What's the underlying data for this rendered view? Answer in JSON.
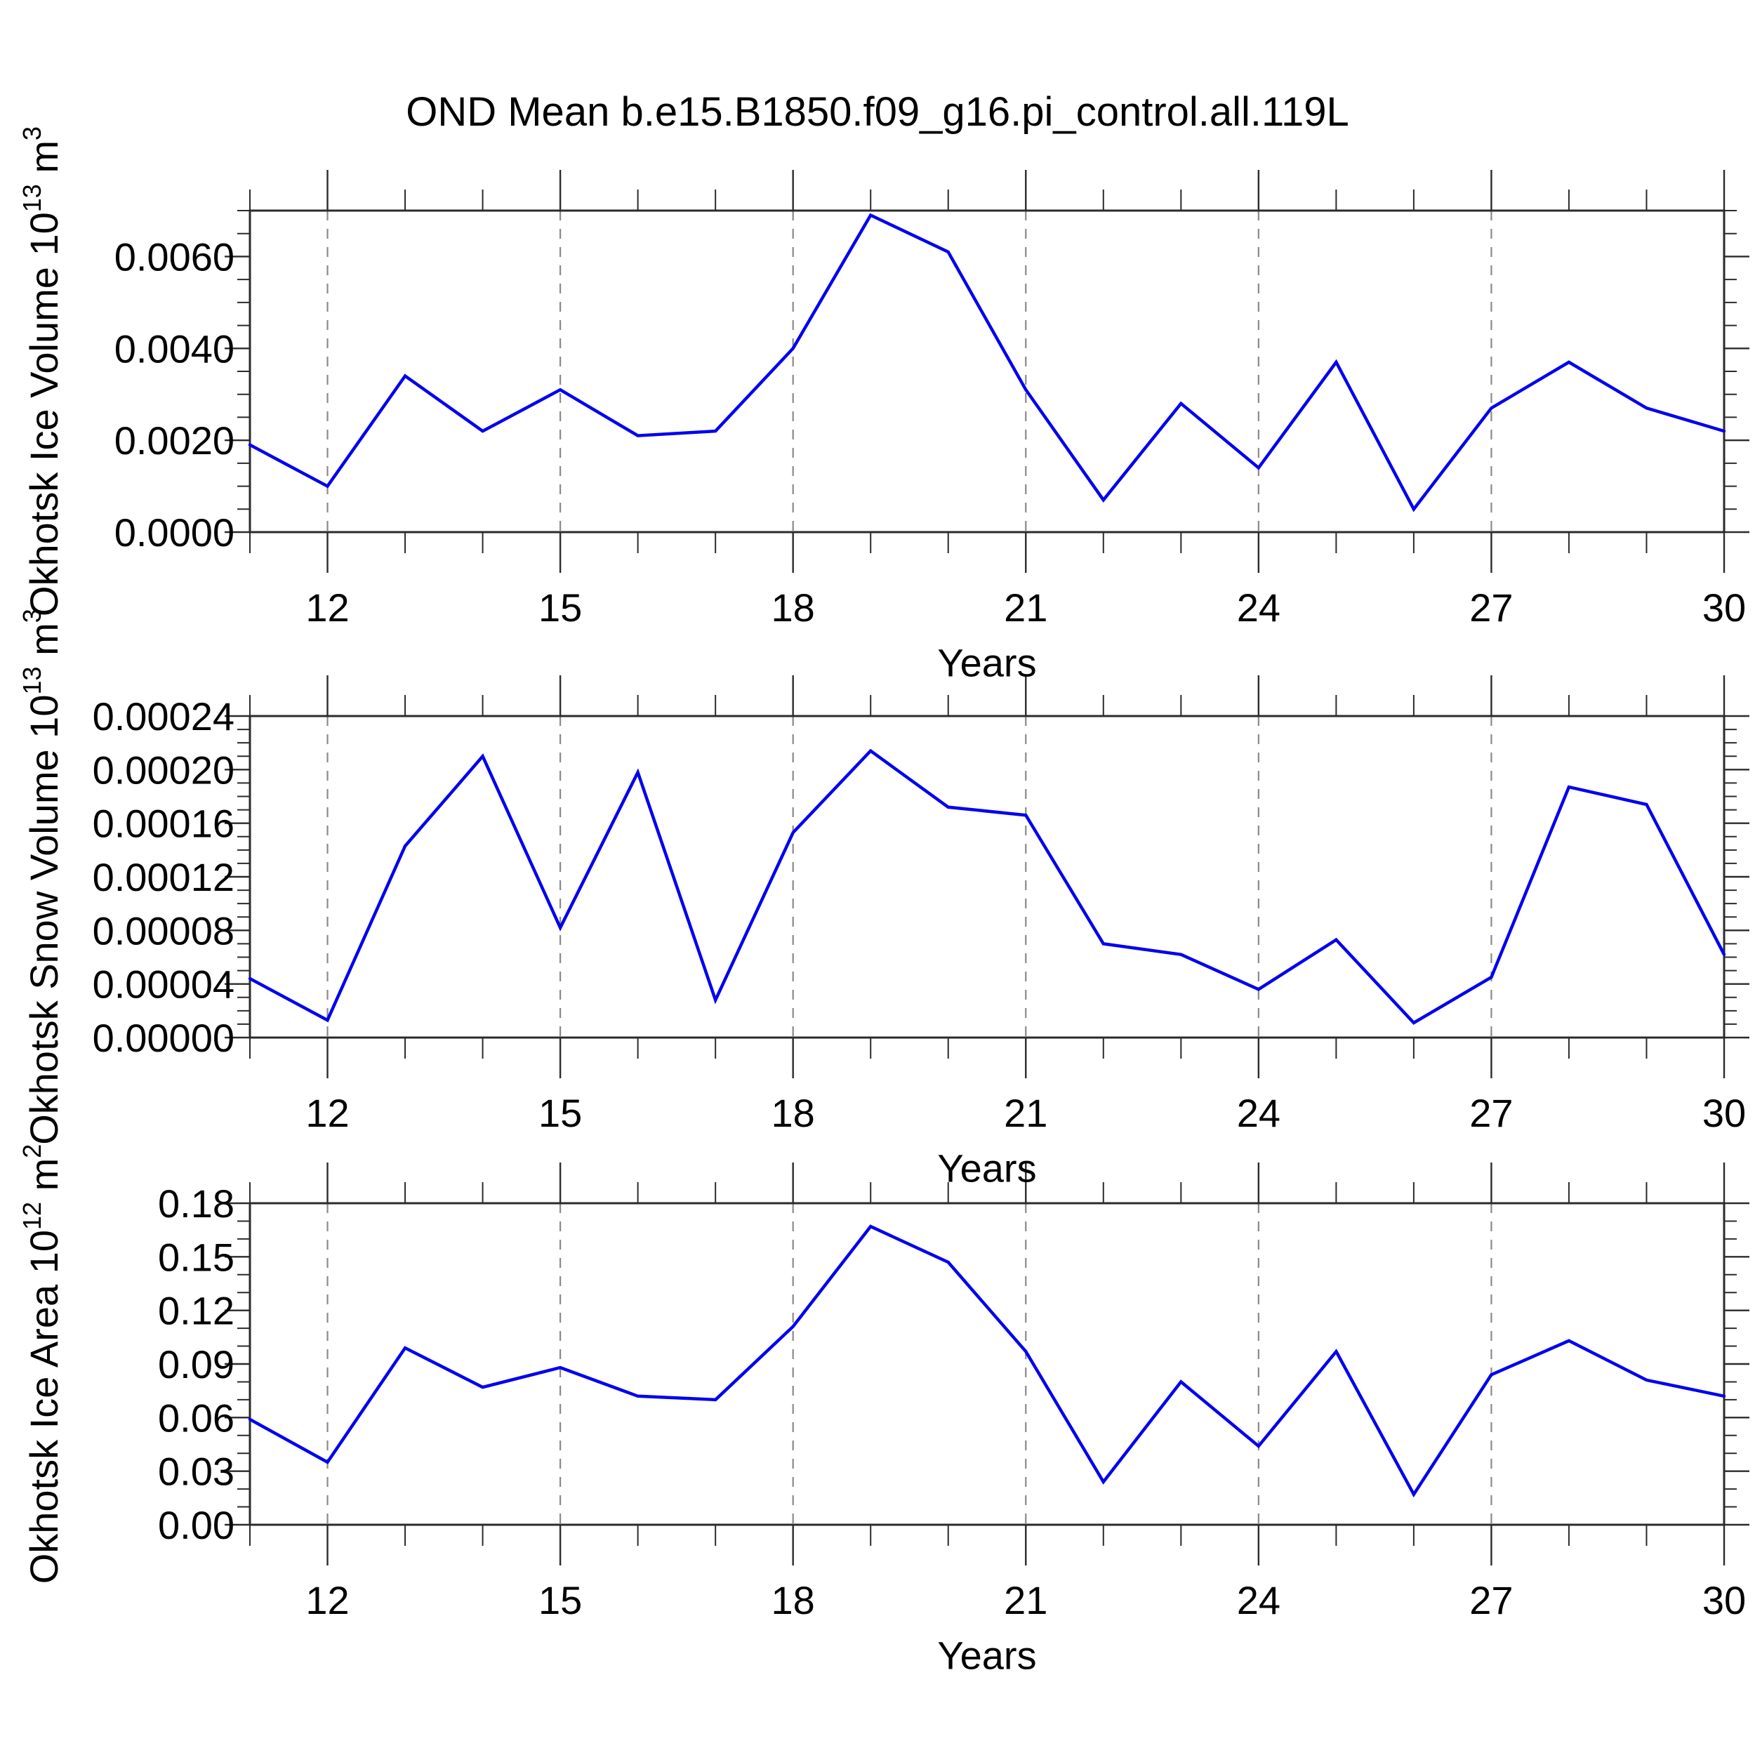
{
  "page": {
    "title": "OND Mean b.e15.B1850.f09_g16.pi_control.all.119L",
    "background": "#ffffff",
    "line_color": "#0202ee",
    "grid_color": "#8a8a8a",
    "axis_color": "#2b2b2b"
  },
  "chart_data": [
    {
      "type": "line",
      "panel": "top",
      "xlabel": "Years",
      "ylabel": {
        "prefix": "Okhotsk Ice Volume 10",
        "exponent": "13",
        "unit": " m",
        "unit_exponent": "3"
      },
      "x": [
        11,
        12,
        13,
        14,
        15,
        16,
        17,
        18,
        19,
        20,
        21,
        22,
        23,
        24,
        25,
        26,
        27,
        28,
        29,
        30
      ],
      "values": [
        0.0019,
        0.001,
        0.0034,
        0.0022,
        0.0031,
        0.0021,
        0.0022,
        0.004,
        0.0069,
        0.0061,
        0.0031,
        0.0007,
        0.0028,
        0.0014,
        0.0037,
        0.0005,
        0.0027,
        0.0037,
        0.0027,
        0.0022
      ],
      "xlim": [
        11,
        30
      ],
      "ylim": [
        0,
        0.007
      ],
      "xtick_values": [
        12,
        15,
        18,
        21,
        24,
        27,
        30
      ],
      "xtick_labels": [
        "12",
        "15",
        "18",
        "21",
        "24",
        "27",
        "30"
      ],
      "x_minor_step": 1,
      "ytick_values": [
        0.0,
        0.002,
        0.004,
        0.006
      ],
      "ytick_labels": [
        "0.0000",
        "0.0020",
        "0.0040",
        "0.0060"
      ],
      "y_minor_step": 0.0005,
      "grid": {
        "vertical_dashed": true,
        "horizontal": false,
        "legend": "none"
      }
    },
    {
      "type": "line",
      "panel": "middle",
      "xlabel": "Years",
      "ylabel": {
        "prefix": "Okhotsk Snow Volume 10",
        "exponent": "13",
        "unit": " m",
        "unit_exponent": "3"
      },
      "x": [
        11,
        12,
        13,
        14,
        15,
        16,
        17,
        18,
        19,
        20,
        21,
        22,
        23,
        24,
        25,
        26,
        27,
        28,
        29,
        30
      ],
      "values": [
        4.4e-05,
        1.3e-05,
        0.000143,
        0.00021,
        8.2e-05,
        0.000198,
        2.8e-05,
        0.000153,
        0.000214,
        0.000172,
        0.000166,
        7e-05,
        6.2e-05,
        3.6e-05,
        7.3e-05,
        1.1e-05,
        4.5e-05,
        0.000187,
        0.000174,
        6.2e-05
      ],
      "xlim": [
        11,
        30
      ],
      "ylim": [
        0,
        0.00024
      ],
      "xtick_values": [
        12,
        15,
        18,
        21,
        24,
        27,
        30
      ],
      "xtick_labels": [
        "12",
        "15",
        "18",
        "21",
        "24",
        "27",
        "30"
      ],
      "x_minor_step": 1,
      "ytick_values": [
        0.0,
        4e-05,
        8e-05,
        0.00012,
        0.00016,
        0.0002,
        0.00024
      ],
      "ytick_labels": [
        "0.00000",
        "0.00004",
        "0.00008",
        "0.00012",
        "0.00016",
        "0.00020",
        "0.00024"
      ],
      "y_minor_step": 1e-05,
      "grid": {
        "vertical_dashed": true,
        "horizontal": false,
        "legend": "none"
      }
    },
    {
      "type": "line",
      "panel": "bottom",
      "xlabel": "Years",
      "ylabel": {
        "prefix": "Okhotsk Ice Area 10",
        "exponent": "12",
        "unit": " m",
        "unit_exponent": "2"
      },
      "x": [
        11,
        12,
        13,
        14,
        15,
        16,
        17,
        18,
        19,
        20,
        21,
        22,
        23,
        24,
        25,
        26,
        27,
        28,
        29,
        30
      ],
      "values": [
        0.059,
        0.035,
        0.099,
        0.077,
        0.088,
        0.072,
        0.07,
        0.111,
        0.167,
        0.147,
        0.097,
        0.024,
        0.08,
        0.044,
        0.097,
        0.017,
        0.084,
        0.103,
        0.081,
        0.072
      ],
      "xlim": [
        11,
        30
      ],
      "ylim": [
        0,
        0.18
      ],
      "xtick_values": [
        12,
        15,
        18,
        21,
        24,
        27,
        30
      ],
      "xtick_labels": [
        "12",
        "15",
        "18",
        "21",
        "24",
        "27",
        "30"
      ],
      "x_minor_step": 1,
      "ytick_values": [
        0.0,
        0.03,
        0.06,
        0.09,
        0.12,
        0.15,
        0.18
      ],
      "ytick_labels": [
        "0.00",
        "0.03",
        "0.06",
        "0.09",
        "0.12",
        "0.15",
        "0.18"
      ],
      "y_minor_step": 0.01,
      "grid": {
        "vertical_dashed": true,
        "horizontal": false,
        "legend": "none"
      }
    }
  ]
}
